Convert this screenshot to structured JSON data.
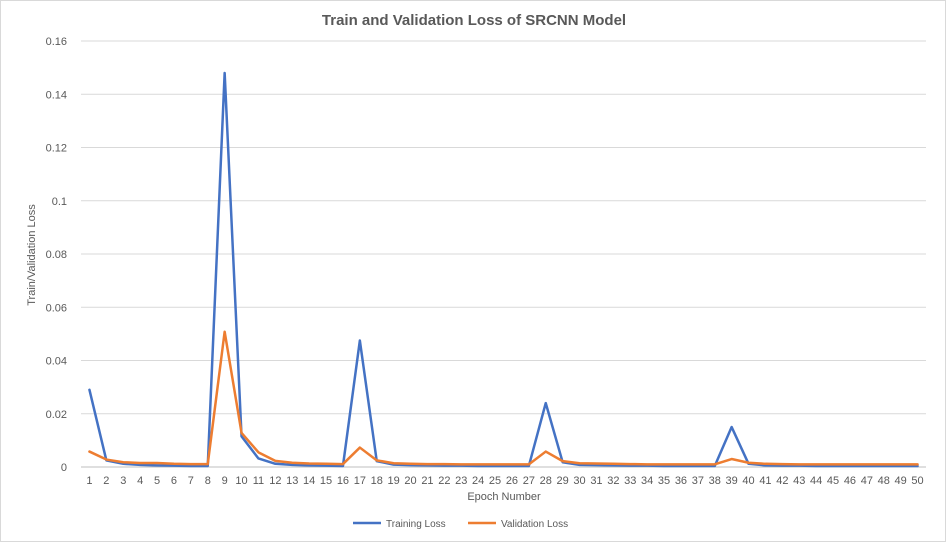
{
  "chart_data": {
    "type": "line",
    "title": "Train and Validation Loss of SRCNN Model",
    "xlabel": "Epoch Number",
    "ylabel": "Train/Validation Loss",
    "ylim": [
      0,
      0.16
    ],
    "yticks": [
      "0",
      "0.02",
      "0.04",
      "0.06",
      "0.08",
      "0.1",
      "0.12",
      "0.14",
      "0.16"
    ],
    "grid": true,
    "legend_position": "bottom",
    "categories": [
      "1",
      "2",
      "3",
      "4",
      "5",
      "6",
      "7",
      "8",
      "9",
      "10",
      "11",
      "12",
      "13",
      "14",
      "15",
      "16",
      "17",
      "18",
      "19",
      "20",
      "21",
      "22",
      "23",
      "24",
      "25",
      "26",
      "27",
      "28",
      "29",
      "30",
      "31",
      "32",
      "33",
      "34",
      "35",
      "36",
      "37",
      "38",
      "39",
      "40",
      "41",
      "42",
      "43",
      "44",
      "45",
      "46",
      "47",
      "48",
      "49",
      "50"
    ],
    "series": [
      {
        "name": "Training Loss",
        "color": "#4472c4",
        "values": [
          0.029,
          0.0025,
          0.0012,
          0.0008,
          0.0006,
          0.0005,
          0.0004,
          0.0004,
          0.148,
          0.0115,
          0.0032,
          0.0012,
          0.0008,
          0.0006,
          0.0005,
          0.0004,
          0.0475,
          0.0022,
          0.0009,
          0.0007,
          0.0006,
          0.0005,
          0.0005,
          0.0004,
          0.0004,
          0.0004,
          0.0004,
          0.024,
          0.0018,
          0.0008,
          0.0007,
          0.0006,
          0.0005,
          0.0005,
          0.0004,
          0.0004,
          0.0004,
          0.0004,
          0.015,
          0.0012,
          0.0006,
          0.0005,
          0.0005,
          0.0004,
          0.0004,
          0.0004,
          0.0004,
          0.0004,
          0.0004,
          0.0004
        ]
      },
      {
        "name": "Validation Loss",
        "color": "#ed7d31",
        "values": [
          0.0058,
          0.0028,
          0.0018,
          0.0015,
          0.0015,
          0.0012,
          0.0011,
          0.0011,
          0.0508,
          0.0128,
          0.0055,
          0.0023,
          0.0016,
          0.0013,
          0.0012,
          0.0011,
          0.0073,
          0.0025,
          0.0014,
          0.0012,
          0.0011,
          0.0011,
          0.001,
          0.001,
          0.001,
          0.001,
          0.001,
          0.0058,
          0.0022,
          0.0014,
          0.0013,
          0.0012,
          0.0011,
          0.001,
          0.001,
          0.001,
          0.001,
          0.001,
          0.003,
          0.0016,
          0.0012,
          0.0011,
          0.001,
          0.001,
          0.001,
          0.001,
          0.001,
          0.001,
          0.001,
          0.001
        ]
      }
    ]
  }
}
